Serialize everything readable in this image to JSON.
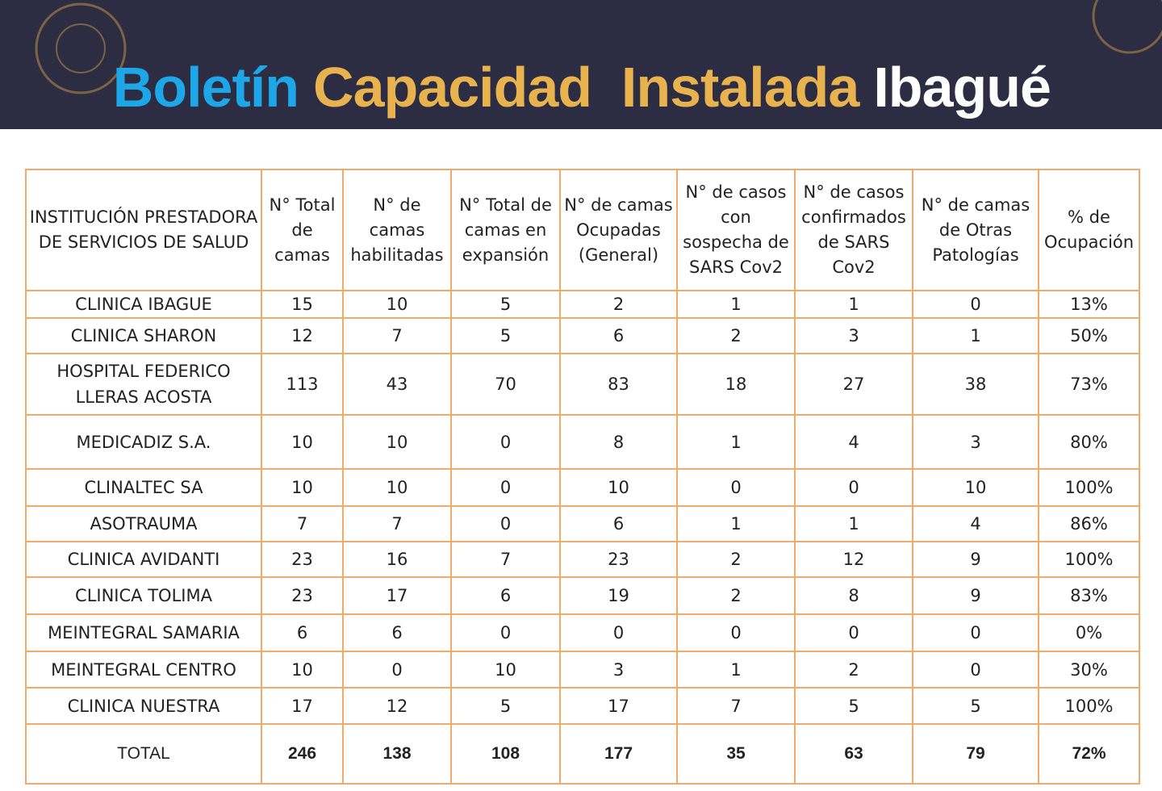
{
  "header": {
    "title": [
      "Boletín",
      "Capacidad  Instalada",
      "Ibagué"
    ]
  },
  "table": {
    "columns": [
      "INSTITUCIÓN PRESTADORA DE SERVICIOS DE SALUD",
      "N° Total de camas",
      "N° de camas habilitadas",
      "N° Total de camas en expansión",
      "N° de camas Ocupadas (General)",
      "N° de casos con sospecha de SARS Cov2",
      "N° de casos confirmados de SARS Cov2",
      "N° de camas de Otras Patologías",
      "% de Ocupación"
    ],
    "rows": [
      [
        "CLINICA IBAGUE",
        "15",
        "10",
        "5",
        "2",
        "1",
        "1",
        "0",
        "13%"
      ],
      [
        "CLINICA SHARON",
        "12",
        "7",
        "5",
        "6",
        "2",
        "3",
        "1",
        "50%"
      ],
      [
        "HOSPITAL FEDERICO LLERAS ACOSTA",
        "113",
        "43",
        "70",
        "83",
        "18",
        "27",
        "38",
        "73%"
      ],
      [
        "MEDICADIZ S.A.",
        "10",
        "10",
        "0",
        "8",
        "1",
        "4",
        "3",
        "80%"
      ],
      [
        "CLINALTEC SA",
        "10",
        "10",
        "0",
        "10",
        "0",
        "0",
        "10",
        "100%"
      ],
      [
        "ASOTRAUMA",
        "7",
        "7",
        "0",
        "6",
        "1",
        "1",
        "4",
        "86%"
      ],
      [
        "CLINICA AVIDANTI",
        "23",
        "16",
        "7",
        "23",
        "2",
        "12",
        "9",
        "100%"
      ],
      [
        "CLINICA TOLIMA",
        "23",
        "17",
        "6",
        "19",
        "2",
        "8",
        "9",
        "83%"
      ],
      [
        "MEINTEGRAL SAMARIA",
        "6",
        "6",
        "0",
        "0",
        "0",
        "0",
        "0",
        "0%"
      ],
      [
        "MEINTEGRAL CENTRO",
        "10",
        "0",
        "10",
        "3",
        "1",
        "2",
        "0",
        "30%"
      ],
      [
        "CLINICA NUESTRA",
        "17",
        "12",
        "5",
        "17",
        "7",
        "5",
        "5",
        "100%"
      ]
    ],
    "total": [
      "TOTAL",
      "246",
      "138",
      "108",
      "177",
      "35",
      "63",
      "79",
      "72%"
    ]
  }
}
